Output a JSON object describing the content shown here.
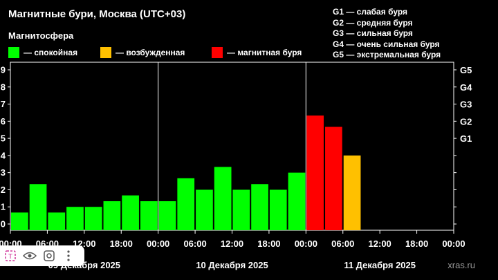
{
  "title": "Магнитные бури, Москва (UTC+03)",
  "subtitle": "Магнитосфера",
  "legend": [
    {
      "label": "— спокойная",
      "color": "#00ff00"
    },
    {
      "label": "— возбужденная",
      "color": "#ffc000"
    },
    {
      "label": "— магнитная буря",
      "color": "#ff0000"
    }
  ],
  "g_legend": [
    "G1 — слабая буря",
    "G2 — средняя буря",
    "G3 — сильная буря",
    "G4 — очень сильная буря",
    "G5 — экстремальная буря"
  ],
  "watermark": "xras.ru",
  "toolbar": {
    "icons": [
      "text-select-icon",
      "eye-icon",
      "lens-icon",
      "more-icon"
    ]
  },
  "colors": {
    "quiet": "#00ff00",
    "active": "#ffc000",
    "storm": "#ff0000",
    "grid": "#ffffff"
  },
  "chart_data": {
    "type": "bar",
    "title": "Магнитные бури, Москва (UTC+03)",
    "ylim": [
      0,
      9
    ],
    "y_ticks": [
      "0",
      "1",
      "2",
      "3",
      "4",
      "5",
      "6",
      "7",
      "8",
      "9"
    ],
    "g_ticks": [
      {
        "label": "G1",
        "value": 5
      },
      {
        "label": "G2",
        "value": 6
      },
      {
        "label": "G3",
        "value": 7
      },
      {
        "label": "G4",
        "value": 8
      },
      {
        "label": "G5",
        "value": 9
      }
    ],
    "x_ticks": [
      "00:00",
      "06:00",
      "12:00",
      "18:00",
      "00:00",
      "06:00",
      "12:00",
      "18:00",
      "00:00",
      "06:00",
      "12:00",
      "18:00",
      "00:00"
    ],
    "day_labels": [
      "09 Декабря 2025",
      "10 Декабря 2025",
      "11 Декабря 2025"
    ],
    "interval_hours": 3,
    "values": [
      0.67,
      2.33,
      0.67,
      1.0,
      1.0,
      1.33,
      1.67,
      1.33,
      1.33,
      2.67,
      2.0,
      3.33,
      2.0,
      2.33,
      2.0,
      3.0,
      6.33,
      5.67,
      4.0
    ],
    "levels": [
      "quiet",
      "quiet",
      "quiet",
      "quiet",
      "quiet",
      "quiet",
      "quiet",
      "quiet",
      "quiet",
      "quiet",
      "quiet",
      "quiet",
      "quiet",
      "quiet",
      "quiet",
      "quiet",
      "storm",
      "storm",
      "active"
    ]
  }
}
